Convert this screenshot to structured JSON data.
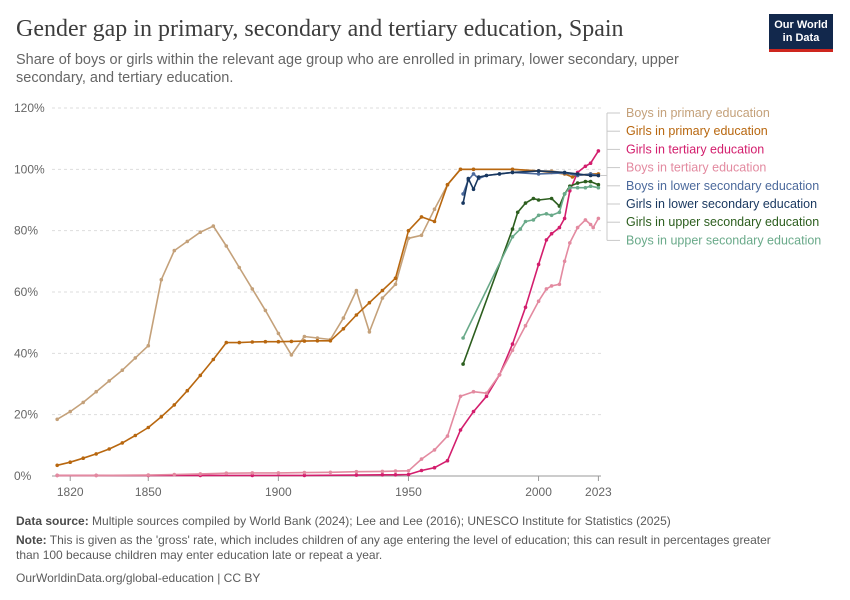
{
  "header": {
    "title": "Gender gap in primary, secondary and tertiary education, Spain",
    "subtitle": "Share of boys or girls within the relevant age group who are enrolled in primary, lower secondary, upper secondary, and tertiary education.",
    "logo_line1": "Our World",
    "logo_line2": "in Data"
  },
  "footer": {
    "source_label": "Data source:",
    "source_text": "Multiple sources compiled by World Bank (2024); Lee and Lee (2016); UNESCO Institute for Statistics (2025)",
    "note_label": "Note:",
    "note_text": "This is given as the 'gross' rate, which includes children of any age entering the level of education; this can result in percentages greater than 100 because children may enter education late or repeat a year.",
    "url_text": "OurWorldinData.org/global-education | CC BY"
  },
  "colors": {
    "grid": "#dddddd",
    "axis": "#999999",
    "tick_text": "#666666"
  },
  "chart_data": {
    "type": "line",
    "xlim": [
      1813,
      2024
    ],
    "ylim": [
      0,
      120
    ],
    "x_ticks": [
      {
        "value": 1820,
        "label": "1820"
      },
      {
        "value": 1850,
        "label": "1850"
      },
      {
        "value": 1900,
        "label": "1900"
      },
      {
        "value": 1950,
        "label": "1950"
      },
      {
        "value": 2000,
        "label": "2000"
      },
      {
        "value": 2023,
        "label": "2023"
      }
    ],
    "y_ticks": [
      {
        "value": 0,
        "label": "0%"
      },
      {
        "value": 20,
        "label": "20%"
      },
      {
        "value": 40,
        "label": "40%"
      },
      {
        "value": 60,
        "label": "60%"
      },
      {
        "value": 80,
        "label": "80%"
      },
      {
        "value": 100,
        "label": "100%"
      },
      {
        "value": 120,
        "label": "120%"
      }
    ],
    "grid": true,
    "legend_position": "right",
    "series": [
      {
        "name": "Boys in primary education",
        "color": "#c4a17a",
        "points": [
          [
            1815,
            18.5
          ],
          [
            1820,
            21
          ],
          [
            1825,
            24
          ],
          [
            1830,
            27.5
          ],
          [
            1835,
            31
          ],
          [
            1840,
            34.5
          ],
          [
            1845,
            38.5
          ],
          [
            1850,
            42.5
          ],
          [
            1855,
            64
          ],
          [
            1860,
            73.5
          ],
          [
            1865,
            76.5
          ],
          [
            1870,
            79.5
          ],
          [
            1875,
            81.5
          ],
          [
            1880,
            75
          ],
          [
            1885,
            68
          ],
          [
            1890,
            61
          ],
          [
            1895,
            54
          ],
          [
            1900,
            46.5
          ],
          [
            1905,
            39.5
          ],
          [
            1910,
            45.5
          ],
          [
            1915,
            45
          ],
          [
            1920,
            44.5
          ],
          [
            1925,
            51.5
          ],
          [
            1930,
            60.5
          ],
          [
            1935,
            47
          ],
          [
            1940,
            58
          ],
          [
            1945,
            62.5
          ],
          [
            1950,
            77.5
          ],
          [
            1955,
            78.5
          ],
          [
            1960,
            87
          ],
          [
            1965,
            95
          ],
          [
            1970,
            100
          ],
          [
            1975,
            100
          ],
          [
            1990,
            100
          ],
          [
            2000,
            99.5
          ],
          [
            2005,
            99.5
          ],
          [
            2010,
            98.8
          ],
          [
            2015,
            98.3
          ],
          [
            2020,
            98
          ],
          [
            2023,
            98
          ]
        ]
      },
      {
        "name": "Girls in primary education",
        "color": "#b8670f",
        "points": [
          [
            1815,
            3.5
          ],
          [
            1820,
            4.5
          ],
          [
            1825,
            5.8
          ],
          [
            1830,
            7.2
          ],
          [
            1835,
            8.8
          ],
          [
            1840,
            10.8
          ],
          [
            1845,
            13.2
          ],
          [
            1850,
            15.8
          ],
          [
            1855,
            19.3
          ],
          [
            1860,
            23.2
          ],
          [
            1865,
            27.8
          ],
          [
            1870,
            32.8
          ],
          [
            1875,
            38
          ],
          [
            1880,
            43.5
          ],
          [
            1885,
            43.5
          ],
          [
            1890,
            43.7
          ],
          [
            1895,
            43.8
          ],
          [
            1900,
            43.8
          ],
          [
            1905,
            43.9
          ],
          [
            1910,
            44
          ],
          [
            1915,
            44.1
          ],
          [
            1920,
            44.1
          ],
          [
            1925,
            48
          ],
          [
            1930,
            52.5
          ],
          [
            1935,
            56.5
          ],
          [
            1940,
            60.5
          ],
          [
            1945,
            64.5
          ],
          [
            1950,
            80
          ],
          [
            1955,
            84.5
          ],
          [
            1960,
            83
          ],
          [
            1965,
            95
          ],
          [
            1970,
            100
          ],
          [
            1975,
            100
          ],
          [
            1990,
            100
          ],
          [
            2000,
            99.5
          ],
          [
            2005,
            99
          ],
          [
            2010,
            98.5
          ],
          [
            2013,
            97.5
          ],
          [
            2015,
            98
          ],
          [
            2020,
            98.5
          ],
          [
            2023,
            98.5
          ]
        ]
      },
      {
        "name": "Girls in tertiary education",
        "color": "#d31e6d",
        "points": [
          [
            1815,
            0.2
          ],
          [
            1830,
            0.2
          ],
          [
            1850,
            0.2
          ],
          [
            1870,
            0.2
          ],
          [
            1890,
            0.2
          ],
          [
            1910,
            0.2
          ],
          [
            1930,
            0.3
          ],
          [
            1940,
            0.4
          ],
          [
            1945,
            0.4
          ],
          [
            1950,
            0.5
          ],
          [
            1955,
            1.8
          ],
          [
            1960,
            2.7
          ],
          [
            1965,
            5
          ],
          [
            1970,
            15
          ],
          [
            1975,
            21
          ],
          [
            1980,
            26
          ],
          [
            1985,
            33
          ],
          [
            1990,
            43
          ],
          [
            1995,
            55
          ],
          [
            2000,
            69
          ],
          [
            2003,
            77
          ],
          [
            2005,
            79
          ],
          [
            2008,
            81
          ],
          [
            2010,
            84
          ],
          [
            2012,
            93
          ],
          [
            2015,
            99
          ],
          [
            2018,
            101
          ],
          [
            2020,
            102
          ],
          [
            2023,
            106
          ]
        ]
      },
      {
        "name": "Boys in tertiary education",
        "color": "#e38aa0",
        "points": [
          [
            1815,
            0.2
          ],
          [
            1830,
            0.2
          ],
          [
            1850,
            0.3
          ],
          [
            1860,
            0.5
          ],
          [
            1870,
            0.7
          ],
          [
            1880,
            0.9
          ],
          [
            1890,
            1
          ],
          [
            1900,
            1
          ],
          [
            1910,
            1.1
          ],
          [
            1920,
            1.2
          ],
          [
            1930,
            1.4
          ],
          [
            1940,
            1.5
          ],
          [
            1945,
            1.6
          ],
          [
            1950,
            1.7
          ],
          [
            1955,
            5.5
          ],
          [
            1960,
            8.5
          ],
          [
            1965,
            13
          ],
          [
            1970,
            26
          ],
          [
            1975,
            27.5
          ],
          [
            1980,
            27
          ],
          [
            1985,
            33
          ],
          [
            1990,
            41
          ],
          [
            1995,
            49
          ],
          [
            2000,
            57
          ],
          [
            2003,
            61
          ],
          [
            2005,
            62
          ],
          [
            2008,
            62.5
          ],
          [
            2010,
            70
          ],
          [
            2012,
            76
          ],
          [
            2015,
            81
          ],
          [
            2018,
            83.5
          ],
          [
            2020,
            82
          ],
          [
            2021,
            81
          ],
          [
            2023,
            84
          ]
        ]
      },
      {
        "name": "Boys in lower secondary education",
        "color": "#4c6a9c",
        "points": [
          [
            1971,
            92
          ],
          [
            1973,
            96.5
          ],
          [
            1975,
            98.5
          ],
          [
            1977,
            97
          ],
          [
            1980,
            98
          ],
          [
            1985,
            98.5
          ],
          [
            1990,
            99
          ],
          [
            2000,
            98.5
          ],
          [
            2010,
            98.8
          ],
          [
            2015,
            98
          ],
          [
            2020,
            98.5
          ],
          [
            2023,
            98
          ]
        ]
      },
      {
        "name": "Girls in lower secondary education",
        "color": "#18375f",
        "points": [
          [
            1971,
            89
          ],
          [
            1973,
            97
          ],
          [
            1975,
            93.5
          ],
          [
            1977,
            97.5
          ],
          [
            1980,
            98
          ],
          [
            1985,
            98.5
          ],
          [
            1990,
            99
          ],
          [
            2000,
            99.5
          ],
          [
            2010,
            99
          ],
          [
            2015,
            98.5
          ],
          [
            2020,
            98
          ],
          [
            2023,
            98
          ]
        ]
      },
      {
        "name": "Girls in upper secondary education",
        "color": "#2c5e1e",
        "points": [
          [
            1971,
            36.5
          ],
          [
            1990,
            80.5
          ],
          [
            1992,
            86
          ],
          [
            1995,
            89
          ],
          [
            1998,
            90.5
          ],
          [
            2000,
            90
          ],
          [
            2005,
            90.5
          ],
          [
            2008,
            88
          ],
          [
            2010,
            92
          ],
          [
            2012,
            94.5
          ],
          [
            2015,
            95.5
          ],
          [
            2018,
            96
          ],
          [
            2020,
            96
          ],
          [
            2023,
            95
          ]
        ]
      },
      {
        "name": "Boys in upper secondary education",
        "color": "#6aaa8a",
        "points": [
          [
            1971,
            45
          ],
          [
            1990,
            78
          ],
          [
            1993,
            80.5
          ],
          [
            1995,
            83
          ],
          [
            1998,
            83.5
          ],
          [
            2000,
            85
          ],
          [
            2003,
            85.5
          ],
          [
            2005,
            85
          ],
          [
            2008,
            86
          ],
          [
            2010,
            92
          ],
          [
            2012,
            94
          ],
          [
            2015,
            94
          ],
          [
            2018,
            94
          ],
          [
            2020,
            94.5
          ],
          [
            2023,
            94
          ]
        ]
      }
    ]
  }
}
